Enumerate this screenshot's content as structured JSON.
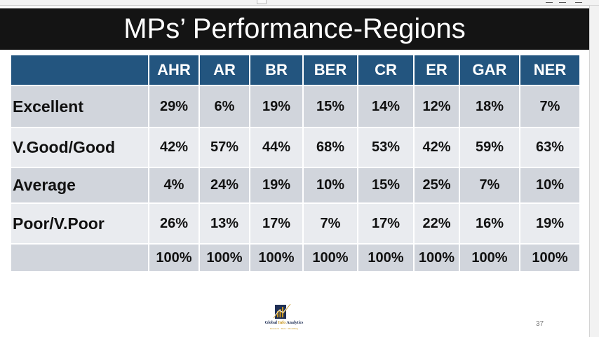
{
  "slide": {
    "title": "MPs’ Performance-Regions",
    "page_number": "37"
  },
  "table": {
    "columns": [
      "",
      "AHR",
      "AR",
      "BR",
      "BER",
      "CR",
      "ER",
      "GAR",
      "NER"
    ],
    "rows": [
      {
        "label": "Excellent",
        "values": [
          "29%",
          "6%",
          "19%",
          "15%",
          "14%",
          "12%",
          "18%",
          "7%"
        ]
      },
      {
        "label": "V.Good/Good",
        "values": [
          "42%",
          "57%",
          "44%",
          "68%",
          "53%",
          "42%",
          "59%",
          "63%"
        ]
      },
      {
        "label": "Average",
        "values": [
          "4%",
          "24%",
          "19%",
          "10%",
          "15%",
          "25%",
          "7%",
          "10%"
        ]
      },
      {
        "label": "Poor/V.Poor",
        "values": [
          "26%",
          "13%",
          "17%",
          "7%",
          "17%",
          "22%",
          "16%",
          "19%"
        ]
      },
      {
        "label": "",
        "values": [
          "100%",
          "100%",
          "100%",
          "100%",
          "100%",
          "100%",
          "100%",
          "100%"
        ]
      }
    ]
  },
  "logo": {
    "name_part1": "Global ",
    "name_part2": "Info",
    "name_part3": " Analytics",
    "tagline": "Research · Data · Modelling"
  },
  "colors": {
    "title_bar": "#141414",
    "header": "#23557f",
    "row_dark": "#d1d5dc",
    "row_light": "#e9ebef"
  }
}
